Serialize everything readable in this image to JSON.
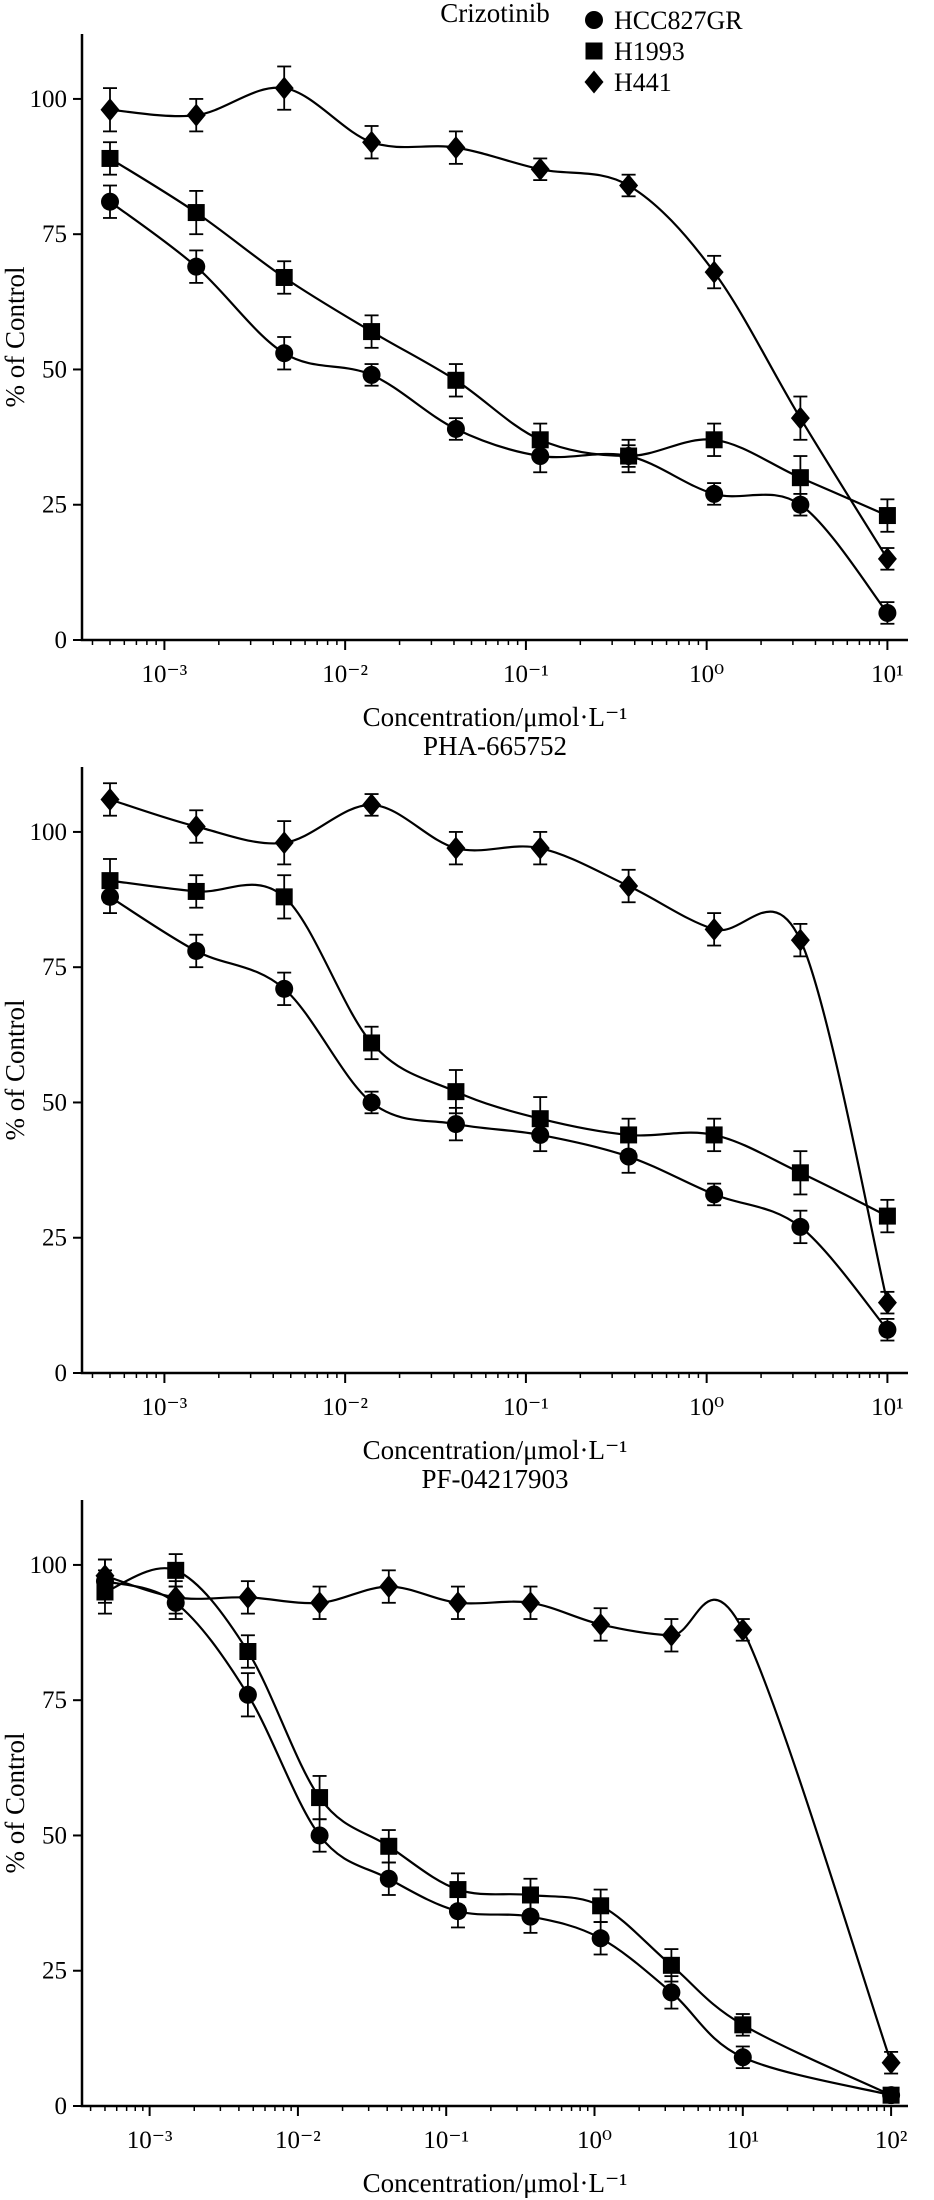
{
  "figure": {
    "background": "#ffffff",
    "ink": "#000000"
  },
  "chart_data": [
    {
      "type": "scatter",
      "title": "Crizotinib",
      "xlabel": "Concentration/μmol·L⁻¹",
      "ylabel": "% of Control",
      "x_scale": "log",
      "grid": false,
      "xlim": [
        0.00035,
        13
      ],
      "ylim": [
        0,
        112
      ],
      "yticks": [
        0,
        25,
        50,
        75,
        100
      ],
      "xticks": [
        {
          "value": 0.001,
          "label": "10⁻³"
        },
        {
          "value": 0.01,
          "label": "10⁻²"
        },
        {
          "value": 0.1,
          "label": "10⁻¹"
        },
        {
          "value": 1,
          "label": "10⁰"
        },
        {
          "value": 10,
          "label": "10¹"
        }
      ],
      "legend": {
        "position": "top-right",
        "entries": [
          {
            "marker": "circle",
            "label": "HCC827GR"
          },
          {
            "marker": "square",
            "label": "H1993"
          },
          {
            "marker": "diamond",
            "label": "H441"
          }
        ]
      },
      "x": [
        0.0005,
        0.0015,
        0.0046,
        0.014,
        0.041,
        0.12,
        0.37,
        1.1,
        3.3,
        10
      ],
      "series": [
        {
          "name": "HCC827GR",
          "marker": "circle",
          "values": [
            81,
            69,
            53,
            49,
            39,
            34,
            34,
            27,
            25,
            5
          ],
          "errors": [
            3,
            3,
            3,
            2,
            2,
            3,
            2,
            2,
            2,
            2
          ]
        },
        {
          "name": "H1993",
          "marker": "square",
          "values": [
            89,
            79,
            67,
            57,
            48,
            37,
            34,
            37,
            30,
            23
          ],
          "errors": [
            3,
            4,
            3,
            3,
            3,
            3,
            3,
            3,
            4,
            3
          ]
        },
        {
          "name": "H441",
          "marker": "diamond",
          "values": [
            98,
            97,
            102,
            92,
            91,
            87,
            84,
            68,
            41,
            15
          ],
          "errors": [
            4,
            3,
            4,
            3,
            3,
            2,
            2,
            3,
            4,
            2
          ]
        }
      ]
    },
    {
      "type": "scatter",
      "title": "PHA-665752",
      "xlabel": "Concentration/μmol·L⁻¹",
      "ylabel": "% of Control",
      "x_scale": "log",
      "grid": false,
      "xlim": [
        0.00035,
        13
      ],
      "ylim": [
        0,
        112
      ],
      "yticks": [
        0,
        25,
        50,
        75,
        100
      ],
      "xticks": [
        {
          "value": 0.001,
          "label": "10⁻³"
        },
        {
          "value": 0.01,
          "label": "10⁻²"
        },
        {
          "value": 0.1,
          "label": "10⁻¹"
        },
        {
          "value": 1,
          "label": "10⁰"
        },
        {
          "value": 10,
          "label": "10¹"
        }
      ],
      "legend": null,
      "x": [
        0.0005,
        0.0015,
        0.0046,
        0.014,
        0.041,
        0.12,
        0.37,
        1.1,
        3.3,
        10
      ],
      "series": [
        {
          "name": "HCC827GR",
          "marker": "circle",
          "values": [
            88,
            78,
            71,
            50,
            46,
            44,
            40,
            33,
            27,
            8
          ],
          "errors": [
            3,
            3,
            3,
            2,
            3,
            3,
            3,
            2,
            3,
            2
          ]
        },
        {
          "name": "H1993",
          "marker": "square",
          "values": [
            91,
            89,
            88,
            61,
            52,
            47,
            44,
            44,
            37,
            29
          ],
          "errors": [
            4,
            3,
            4,
            3,
            4,
            4,
            3,
            3,
            4,
            3
          ]
        },
        {
          "name": "H441",
          "marker": "diamond",
          "values": [
            106,
            101,
            98,
            105,
            97,
            97,
            90,
            82,
            80,
            13
          ],
          "errors": [
            3,
            3,
            4,
            2,
            3,
            3,
            3,
            3,
            3,
            2
          ]
        }
      ]
    },
    {
      "type": "scatter",
      "title": "PF-04217903",
      "xlabel": "Concentration/μmol·L⁻¹",
      "ylabel": "% of Control",
      "x_scale": "log",
      "grid": false,
      "xlim": [
        0.00035,
        130
      ],
      "ylim": [
        0,
        112
      ],
      "yticks": [
        0,
        25,
        50,
        75,
        100
      ],
      "xticks": [
        {
          "value": 0.001,
          "label": "10⁻³"
        },
        {
          "value": 0.01,
          "label": "10⁻²"
        },
        {
          "value": 0.1,
          "label": "10⁻¹"
        },
        {
          "value": 1,
          "label": "10⁰"
        },
        {
          "value": 10,
          "label": "10¹"
        },
        {
          "value": 100,
          "label": "10²"
        }
      ],
      "legend": null,
      "x": [
        0.0005,
        0.0015,
        0.0046,
        0.014,
        0.041,
        0.12,
        0.37,
        1.1,
        3.3,
        10,
        100
      ],
      "series": [
        {
          "name": "HCC827GR",
          "marker": "circle",
          "values": [
            97,
            93,
            76,
            50,
            42,
            36,
            35,
            31,
            21,
            9,
            2
          ],
          "errors": [
            4,
            3,
            4,
            3,
            3,
            3,
            3,
            3,
            3,
            2,
            1
          ]
        },
        {
          "name": "H1993",
          "marker": "square",
          "values": [
            95,
            99,
            84,
            57,
            48,
            40,
            39,
            37,
            26,
            15,
            2
          ],
          "errors": [
            4,
            3,
            3,
            4,
            3,
            3,
            3,
            3,
            3,
            2,
            1
          ]
        },
        {
          "name": "H441",
          "marker": "diamond",
          "values": [
            98,
            94,
            94,
            93,
            96,
            93,
            93,
            89,
            87,
            88,
            8
          ],
          "errors": [
            3,
            3,
            3,
            3,
            3,
            3,
            3,
            3,
            3,
            2,
            2
          ]
        }
      ]
    }
  ]
}
